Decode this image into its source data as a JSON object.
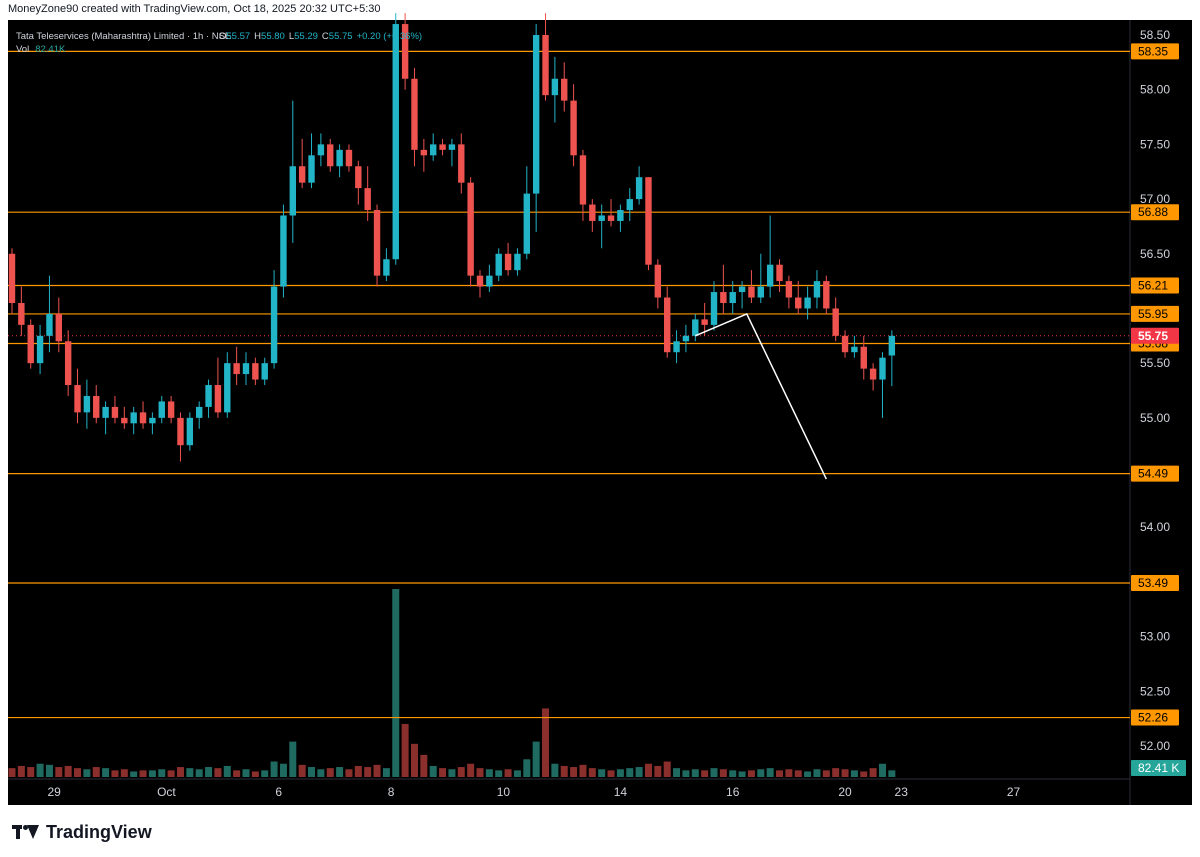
{
  "header": {
    "attribution": "MoneyZone90 created with TradingView.com, Oct 18, 2025 20:32 UTC+5:30",
    "symbol": "Tata Teleservices (Maharashtra) Limited · 1h · NSE",
    "o_label": "O",
    "o_value": "55.57",
    "h_label": "H",
    "h_value": "55.80",
    "l_label": "L",
    "l_value": "55.29",
    "c_label": "C",
    "c_value": "55.75",
    "change": "+0.20 (+0.36%)",
    "vol_label": "Vol",
    "vol_value": "82.41K"
  },
  "brand": {
    "name": "TradingView"
  },
  "colors": {
    "background": "#000000",
    "up": "#26a69a",
    "up_candle": "#22b5c8",
    "down": "#ef5350",
    "level_line": "#ff9800",
    "price_label_bg": "#ff9800",
    "current_price_bg": "#f23645",
    "drawing": "#ffffff",
    "text": "#d1d4dc"
  },
  "chart_data": {
    "type": "candlestick",
    "symbol": "Tata Teleservices (Maharashtra) Limited",
    "interval": "1h",
    "exchange": "NSE",
    "ylim": [
      51.85,
      58.6
    ],
    "y_ticks": [
      "58.50",
      "58.00",
      "57.50",
      "57.00",
      "56.50",
      "55.50",
      "55.00",
      "54.00",
      "53.00",
      "52.50",
      "52.00"
    ],
    "x_ticks": [
      "29",
      "Oct",
      "6",
      "8",
      "10",
      "14",
      "16",
      "20",
      "23",
      "27"
    ],
    "horizontal_levels": [
      {
        "price": 58.35,
        "label": "58.35"
      },
      {
        "price": 56.88,
        "label": "56.88"
      },
      {
        "price": 56.21,
        "label": "56.21"
      },
      {
        "price": 55.95,
        "label": "55.95"
      },
      {
        "price": 55.68,
        "label": "55.68"
      },
      {
        "price": 54.49,
        "label": "54.49"
      },
      {
        "price": 53.49,
        "label": "53.49"
      },
      {
        "price": 52.26,
        "label": "52.26"
      }
    ],
    "current_price": {
      "price": 55.75,
      "label": "55.75"
    },
    "volume_label": "82.41 K",
    "projection": [
      {
        "bar": 73,
        "price": 55.75
      },
      {
        "bar": 78.5,
        "price": 55.95
      },
      {
        "bar": 87,
        "price": 54.44
      }
    ],
    "candles": [
      {
        "o": 56.5,
        "h": 56.55,
        "l": 55.95,
        "c": 56.05,
        "v": 8
      },
      {
        "o": 56.05,
        "h": 56.2,
        "l": 55.75,
        "c": 55.85,
        "v": 10
      },
      {
        "o": 55.85,
        "h": 55.9,
        "l": 55.45,
        "c": 55.5,
        "v": 9
      },
      {
        "o": 55.5,
        "h": 55.85,
        "l": 55.4,
        "c": 55.75,
        "v": 12
      },
      {
        "o": 55.75,
        "h": 56.3,
        "l": 55.6,
        "c": 55.95,
        "v": 11
      },
      {
        "o": 55.95,
        "h": 56.1,
        "l": 55.6,
        "c": 55.7,
        "v": 9
      },
      {
        "o": 55.7,
        "h": 55.8,
        "l": 55.2,
        "c": 55.3,
        "v": 10
      },
      {
        "o": 55.3,
        "h": 55.45,
        "l": 54.95,
        "c": 55.05,
        "v": 8
      },
      {
        "o": 55.05,
        "h": 55.35,
        "l": 54.9,
        "c": 55.2,
        "v": 7
      },
      {
        "o": 55.2,
        "h": 55.3,
        "l": 54.95,
        "c": 55.0,
        "v": 9
      },
      {
        "o": 55.0,
        "h": 55.15,
        "l": 54.85,
        "c": 55.1,
        "v": 8
      },
      {
        "o": 55.1,
        "h": 55.2,
        "l": 54.95,
        "c": 55.0,
        "v": 6
      },
      {
        "o": 55.0,
        "h": 55.1,
        "l": 54.9,
        "c": 54.95,
        "v": 7
      },
      {
        "o": 54.95,
        "h": 55.1,
        "l": 54.85,
        "c": 55.05,
        "v": 5
      },
      {
        "o": 55.05,
        "h": 55.15,
        "l": 54.9,
        "c": 54.95,
        "v": 6
      },
      {
        "o": 54.95,
        "h": 55.05,
        "l": 54.85,
        "c": 55.0,
        "v": 6
      },
      {
        "o": 55.0,
        "h": 55.2,
        "l": 54.95,
        "c": 55.15,
        "v": 7
      },
      {
        "o": 55.15,
        "h": 55.2,
        "l": 54.95,
        "c": 55.0,
        "v": 6
      },
      {
        "o": 55.0,
        "h": 55.05,
        "l": 54.6,
        "c": 54.75,
        "v": 9
      },
      {
        "o": 54.75,
        "h": 55.05,
        "l": 54.7,
        "c": 55.0,
        "v": 8
      },
      {
        "o": 55.0,
        "h": 55.15,
        "l": 54.9,
        "c": 55.1,
        "v": 7
      },
      {
        "o": 55.1,
        "h": 55.35,
        "l": 55.0,
        "c": 55.3,
        "v": 9
      },
      {
        "o": 55.3,
        "h": 55.55,
        "l": 55.0,
        "c": 55.05,
        "v": 8
      },
      {
        "o": 55.05,
        "h": 55.6,
        "l": 55.0,
        "c": 55.5,
        "v": 10
      },
      {
        "o": 55.5,
        "h": 55.65,
        "l": 55.3,
        "c": 55.4,
        "v": 6
      },
      {
        "o": 55.4,
        "h": 55.6,
        "l": 55.3,
        "c": 55.5,
        "v": 7
      },
      {
        "o": 55.5,
        "h": 55.55,
        "l": 55.3,
        "c": 55.35,
        "v": 5
      },
      {
        "o": 55.35,
        "h": 55.55,
        "l": 55.3,
        "c": 55.5,
        "v": 6
      },
      {
        "o": 55.5,
        "h": 56.35,
        "l": 55.45,
        "c": 56.2,
        "v": 14
      },
      {
        "o": 56.2,
        "h": 56.95,
        "l": 56.1,
        "c": 56.85,
        "v": 12
      },
      {
        "o": 56.85,
        "h": 57.9,
        "l": 56.6,
        "c": 57.3,
        "v": 32
      },
      {
        "o": 57.3,
        "h": 57.55,
        "l": 57.1,
        "c": 57.15,
        "v": 11
      },
      {
        "o": 57.15,
        "h": 57.6,
        "l": 57.1,
        "c": 57.4,
        "v": 9
      },
      {
        "o": 57.4,
        "h": 57.6,
        "l": 57.3,
        "c": 57.5,
        "v": 7
      },
      {
        "o": 57.5,
        "h": 57.55,
        "l": 57.25,
        "c": 57.3,
        "v": 8
      },
      {
        "o": 57.3,
        "h": 57.5,
        "l": 57.2,
        "c": 57.45,
        "v": 9
      },
      {
        "o": 57.45,
        "h": 57.5,
        "l": 57.25,
        "c": 57.3,
        "v": 7
      },
      {
        "o": 57.3,
        "h": 57.35,
        "l": 56.95,
        "c": 57.1,
        "v": 10
      },
      {
        "o": 57.1,
        "h": 57.3,
        "l": 56.8,
        "c": 56.9,
        "v": 9
      },
      {
        "o": 56.9,
        "h": 56.95,
        "l": 56.2,
        "c": 56.3,
        "v": 11
      },
      {
        "o": 56.3,
        "h": 56.55,
        "l": 56.25,
        "c": 56.45,
        "v": 8
      },
      {
        "o": 56.45,
        "h": 58.7,
        "l": 56.4,
        "c": 58.6,
        "v": 170
      },
      {
        "o": 58.6,
        "h": 58.7,
        "l": 58.0,
        "c": 58.1,
        "v": 48
      },
      {
        "o": 58.1,
        "h": 58.2,
        "l": 57.3,
        "c": 57.45,
        "v": 30
      },
      {
        "o": 57.45,
        "h": 57.55,
        "l": 57.25,
        "c": 57.4,
        "v": 20
      },
      {
        "o": 57.4,
        "h": 57.6,
        "l": 57.35,
        "c": 57.5,
        "v": 10
      },
      {
        "o": 57.5,
        "h": 57.55,
        "l": 57.4,
        "c": 57.45,
        "v": 8
      },
      {
        "o": 57.45,
        "h": 57.55,
        "l": 57.3,
        "c": 57.5,
        "v": 7
      },
      {
        "o": 57.5,
        "h": 57.6,
        "l": 57.05,
        "c": 57.15,
        "v": 9
      },
      {
        "o": 57.15,
        "h": 57.2,
        "l": 56.2,
        "c": 56.3,
        "v": 12
      },
      {
        "o": 56.3,
        "h": 56.35,
        "l": 56.1,
        "c": 56.2,
        "v": 8
      },
      {
        "o": 56.2,
        "h": 56.4,
        "l": 56.15,
        "c": 56.3,
        "v": 7
      },
      {
        "o": 56.3,
        "h": 56.55,
        "l": 56.25,
        "c": 56.5,
        "v": 6
      },
      {
        "o": 56.5,
        "h": 56.6,
        "l": 56.3,
        "c": 56.35,
        "v": 7
      },
      {
        "o": 56.35,
        "h": 56.55,
        "l": 56.3,
        "c": 56.5,
        "v": 6
      },
      {
        "o": 56.5,
        "h": 57.3,
        "l": 56.45,
        "c": 57.05,
        "v": 16
      },
      {
        "o": 57.05,
        "h": 58.6,
        "l": 56.7,
        "c": 58.5,
        "v": 32
      },
      {
        "o": 58.5,
        "h": 58.7,
        "l": 57.9,
        "c": 57.95,
        "v": 62
      },
      {
        "o": 57.95,
        "h": 58.3,
        "l": 57.7,
        "c": 58.1,
        "v": 12
      },
      {
        "o": 58.1,
        "h": 58.25,
        "l": 57.8,
        "c": 57.9,
        "v": 10
      },
      {
        "o": 57.9,
        "h": 58.05,
        "l": 57.3,
        "c": 57.4,
        "v": 9
      },
      {
        "o": 57.4,
        "h": 57.45,
        "l": 56.8,
        "c": 56.95,
        "v": 11
      },
      {
        "o": 56.95,
        "h": 57.0,
        "l": 56.7,
        "c": 56.8,
        "v": 8
      },
      {
        "o": 56.8,
        "h": 56.95,
        "l": 56.55,
        "c": 56.85,
        "v": 7
      },
      {
        "o": 56.85,
        "h": 57.0,
        "l": 56.75,
        "c": 56.8,
        "v": 6
      },
      {
        "o": 56.8,
        "h": 56.95,
        "l": 56.7,
        "c": 56.9,
        "v": 7
      },
      {
        "o": 56.9,
        "h": 57.1,
        "l": 56.8,
        "c": 57.0,
        "v": 8
      },
      {
        "o": 57.0,
        "h": 57.3,
        "l": 56.95,
        "c": 57.2,
        "v": 9
      },
      {
        "o": 57.2,
        "h": 57.2,
        "l": 56.35,
        "c": 56.4,
        "v": 12
      },
      {
        "o": 56.4,
        "h": 56.45,
        "l": 56.0,
        "c": 56.1,
        "v": 10
      },
      {
        "o": 56.1,
        "h": 56.2,
        "l": 55.55,
        "c": 55.6,
        "v": 14
      },
      {
        "o": 55.6,
        "h": 55.8,
        "l": 55.5,
        "c": 55.7,
        "v": 8
      },
      {
        "o": 55.7,
        "h": 55.85,
        "l": 55.6,
        "c": 55.75,
        "v": 6
      },
      {
        "o": 55.75,
        "h": 55.95,
        "l": 55.7,
        "c": 55.9,
        "v": 7
      },
      {
        "o": 55.9,
        "h": 56.05,
        "l": 55.75,
        "c": 55.85,
        "v": 6
      },
      {
        "o": 55.85,
        "h": 56.25,
        "l": 55.8,
        "c": 56.15,
        "v": 8
      },
      {
        "o": 56.15,
        "h": 56.4,
        "l": 55.95,
        "c": 56.05,
        "v": 7
      },
      {
        "o": 56.05,
        "h": 56.25,
        "l": 55.95,
        "c": 56.15,
        "v": 6
      },
      {
        "o": 56.15,
        "h": 56.25,
        "l": 56.0,
        "c": 56.2,
        "v": 5
      },
      {
        "o": 56.2,
        "h": 56.35,
        "l": 56.05,
        "c": 56.1,
        "v": 6
      },
      {
        "o": 56.1,
        "h": 56.5,
        "l": 56.05,
        "c": 56.2,
        "v": 7
      },
      {
        "o": 56.2,
        "h": 56.85,
        "l": 56.1,
        "c": 56.4,
        "v": 8
      },
      {
        "o": 56.4,
        "h": 56.45,
        "l": 56.15,
        "c": 56.25,
        "v": 6
      },
      {
        "o": 56.25,
        "h": 56.3,
        "l": 56.0,
        "c": 56.1,
        "v": 7
      },
      {
        "o": 56.1,
        "h": 56.25,
        "l": 55.95,
        "c": 56.0,
        "v": 6
      },
      {
        "o": 56.0,
        "h": 56.2,
        "l": 55.9,
        "c": 56.1,
        "v": 5
      },
      {
        "o": 56.1,
        "h": 56.35,
        "l": 56.0,
        "c": 56.25,
        "v": 7
      },
      {
        "o": 56.25,
        "h": 56.3,
        "l": 55.95,
        "c": 56.0,
        "v": 6
      },
      {
        "o": 56.0,
        "h": 56.1,
        "l": 55.7,
        "c": 55.75,
        "v": 8
      },
      {
        "o": 55.75,
        "h": 55.8,
        "l": 55.55,
        "c": 55.6,
        "v": 7
      },
      {
        "o": 55.6,
        "h": 55.75,
        "l": 55.55,
        "c": 55.65,
        "v": 6
      },
      {
        "o": 55.65,
        "h": 55.75,
        "l": 55.35,
        "c": 55.45,
        "v": 5
      },
      {
        "o": 55.45,
        "h": 55.5,
        "l": 55.25,
        "c": 55.35,
        "v": 8
      },
      {
        "o": 55.35,
        "h": 55.6,
        "l": 55.0,
        "c": 55.55,
        "v": 12
      },
      {
        "o": 55.57,
        "h": 55.8,
        "l": 55.29,
        "c": 55.75,
        "v": 6
      }
    ]
  }
}
